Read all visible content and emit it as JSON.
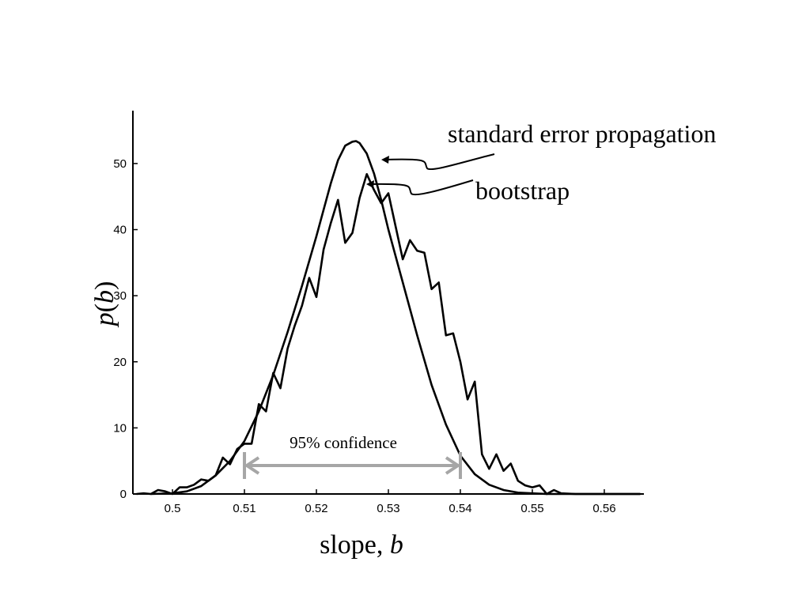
{
  "chart_data": {
    "type": "line",
    "xlabel_text": "slope, ",
    "xlabel_var": "b",
    "ylabel_p": "p",
    "ylabel_b": "b",
    "xlim": [
      0.4945,
      0.5655
    ],
    "ylim": [
      0,
      58
    ],
    "xticks": [
      0.5,
      0.51,
      0.52,
      0.53,
      0.54,
      0.55,
      0.56
    ],
    "xtick_labels": [
      "0.5",
      "0.51",
      "0.52",
      "0.53",
      "0.54",
      "0.55",
      "0.56"
    ],
    "yticks": [
      0,
      10,
      20,
      30,
      40,
      50
    ],
    "ytick_labels": [
      "0",
      "10",
      "20",
      "30",
      "40",
      "50"
    ],
    "series": [
      {
        "name": "standard error propagation",
        "x": [
          0.497,
          0.5,
          0.502,
          0.504,
          0.506,
          0.508,
          0.51,
          0.512,
          0.514,
          0.516,
          0.518,
          0.52,
          0.521,
          0.522,
          0.523,
          0.524,
          0.525,
          0.5255,
          0.526,
          0.527,
          0.528,
          0.529,
          0.53,
          0.532,
          0.534,
          0.536,
          0.538,
          0.54,
          0.542,
          0.544,
          0.546,
          0.548,
          0.55,
          0.552,
          0.555,
          0.56,
          0.565
        ],
        "y": [
          0.0,
          0.1,
          0.4,
          1.2,
          2.8,
          5.0,
          8.0,
          12.5,
          18.0,
          24.5,
          31.5,
          39.0,
          43.0,
          47.0,
          50.5,
          52.7,
          53.3,
          53.4,
          53.1,
          51.5,
          48.5,
          44.5,
          40.0,
          32.0,
          24.0,
          16.5,
          10.5,
          5.8,
          3.0,
          1.4,
          0.6,
          0.2,
          0.1,
          0.0,
          0.0,
          0.0,
          0.0
        ]
      },
      {
        "name": "bootstrap",
        "x": [
          0.495,
          0.496,
          0.497,
          0.498,
          0.499,
          0.5,
          0.501,
          0.502,
          0.503,
          0.504,
          0.505,
          0.506,
          0.507,
          0.508,
          0.509,
          0.51,
          0.511,
          0.512,
          0.513,
          0.514,
          0.515,
          0.516,
          0.517,
          0.518,
          0.519,
          0.52,
          0.521,
          0.522,
          0.523,
          0.524,
          0.525,
          0.526,
          0.527,
          0.528,
          0.529,
          0.53,
          0.531,
          0.532,
          0.533,
          0.534,
          0.535,
          0.536,
          0.537,
          0.538,
          0.539,
          0.54,
          0.541,
          0.542,
          0.543,
          0.544,
          0.545,
          0.546,
          0.547,
          0.548,
          0.549,
          0.55,
          0.551,
          0.552,
          0.553,
          0.554,
          0.556,
          0.558,
          0.56,
          0.562,
          0.565
        ],
        "y": [
          0.0,
          0.1,
          0.0,
          0.6,
          0.4,
          0.0,
          1.0,
          1.0,
          1.4,
          2.2,
          2.0,
          2.8,
          5.5,
          4.5,
          6.8,
          7.6,
          7.6,
          13.6,
          12.5,
          18.3,
          16.0,
          22.0,
          25.5,
          28.5,
          32.7,
          29.8,
          37.0,
          41.0,
          44.5,
          38.0,
          39.5,
          44.8,
          48.4,
          46.0,
          44.0,
          45.5,
          40.5,
          35.5,
          38.4,
          36.8,
          36.5,
          31.0,
          32.0,
          24.0,
          24.3,
          20.0,
          14.3,
          17.0,
          6.0,
          3.8,
          6.0,
          3.5,
          4.6,
          2.0,
          1.3,
          1.0,
          1.3,
          0.0,
          0.6,
          0.1,
          0.0,
          0.0,
          0.0,
          0.0,
          0.0
        ]
      }
    ],
    "annotations": {
      "standard_error_label": "standard error propagation",
      "bootstrap_label": "bootstrap",
      "confidence_label": "95% confidence",
      "confidence_interval": [
        0.51,
        0.54
      ]
    },
    "colors": {
      "line": "#000000",
      "interval": "#a6a6a6"
    },
    "grid": false,
    "legend": "none"
  }
}
